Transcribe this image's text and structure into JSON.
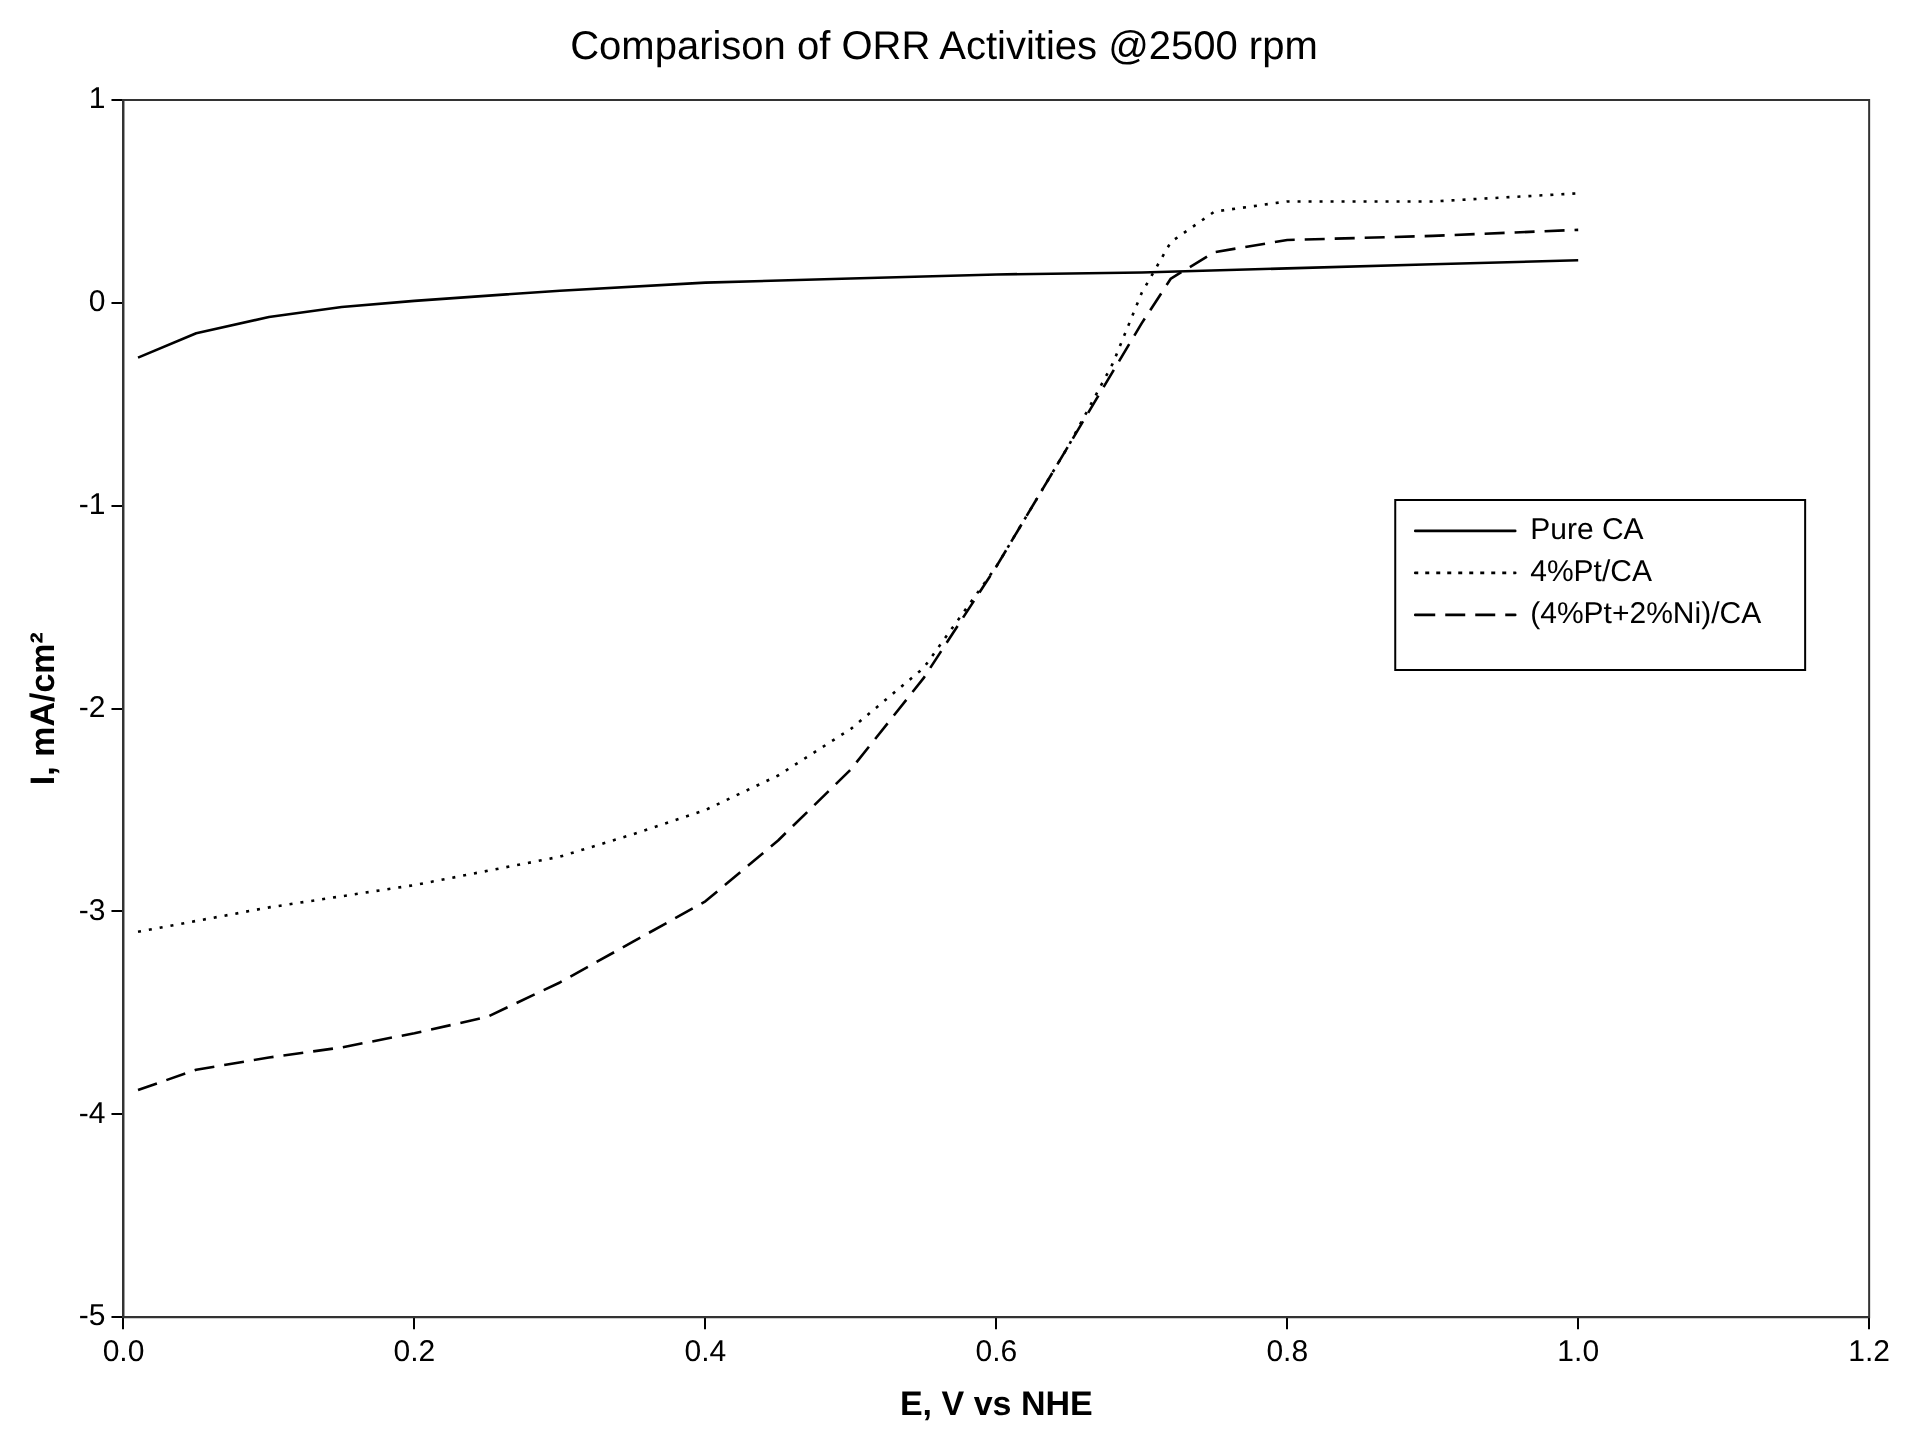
{
  "chart_data": {
    "type": "line",
    "title": "Comparison of ORR Activities @2500 rpm",
    "xlabel": "E, V vs NHE",
    "ylabel": "I, mA/cm²",
    "xlim": [
      0,
      1.2
    ],
    "xticks": [
      {
        "value": 0,
        "label": "0.0"
      },
      {
        "value": 0.2,
        "label": "0.2"
      },
      {
        "value": 0.4,
        "label": "0.4"
      },
      {
        "value": 0.6,
        "label": "0.6"
      },
      {
        "value": 0.8,
        "label": "0.8"
      },
      {
        "value": 1,
        "label": "1.0"
      },
      {
        "value": 1.2,
        "label": "1.2"
      }
    ],
    "ylim": [
      -5,
      1
    ],
    "yticks": [
      -5,
      -4,
      -3,
      -2,
      -1,
      0,
      1
    ],
    "grid": false,
    "legend": "right",
    "marker": "none",
    "series": [
      {
        "name": "Pure CA",
        "color": "#000000",
        "line_style": "solid",
        "x": [
          0.01,
          0.05,
          0.1,
          0.15,
          0.2,
          0.3,
          0.4,
          0.5,
          0.6,
          0.7,
          0.8,
          0.9,
          1.0
        ],
        "values": [
          -0.27,
          -0.15,
          -0.07,
          -0.02,
          0.01,
          0.06,
          0.1,
          0.12,
          0.14,
          0.15,
          0.17,
          0.19,
          0.21
        ]
      },
      {
        "name": "4%Pt/CA",
        "color": "#000000",
        "line_style": "dotted",
        "x": [
          0.01,
          0.1,
          0.2,
          0.3,
          0.35,
          0.4,
          0.45,
          0.5,
          0.55,
          0.6,
          0.65,
          0.68,
          0.7,
          0.72,
          0.75,
          0.8,
          0.9,
          1.0
        ],
        "values": [
          -3.1,
          -2.98,
          -2.87,
          -2.73,
          -2.62,
          -2.5,
          -2.33,
          -2.1,
          -1.8,
          -1.3,
          -0.7,
          -0.3,
          0.05,
          0.3,
          0.45,
          0.5,
          0.5,
          0.54
        ]
      },
      {
        "name": "(4%Pt+2%Ni)/CA",
        "color": "#000000",
        "line_style": "dashed",
        "x": [
          0.01,
          0.05,
          0.1,
          0.15,
          0.2,
          0.25,
          0.3,
          0.35,
          0.4,
          0.45,
          0.5,
          0.55,
          0.6,
          0.65,
          0.7,
          0.72,
          0.75,
          0.8,
          0.9,
          1.0
        ],
        "values": [
          -3.88,
          -3.78,
          -3.72,
          -3.67,
          -3.6,
          -3.52,
          -3.35,
          -3.15,
          -2.95,
          -2.65,
          -2.3,
          -1.85,
          -1.3,
          -0.7,
          -0.1,
          0.12,
          0.25,
          0.31,
          0.33,
          0.36
        ]
      }
    ]
  }
}
